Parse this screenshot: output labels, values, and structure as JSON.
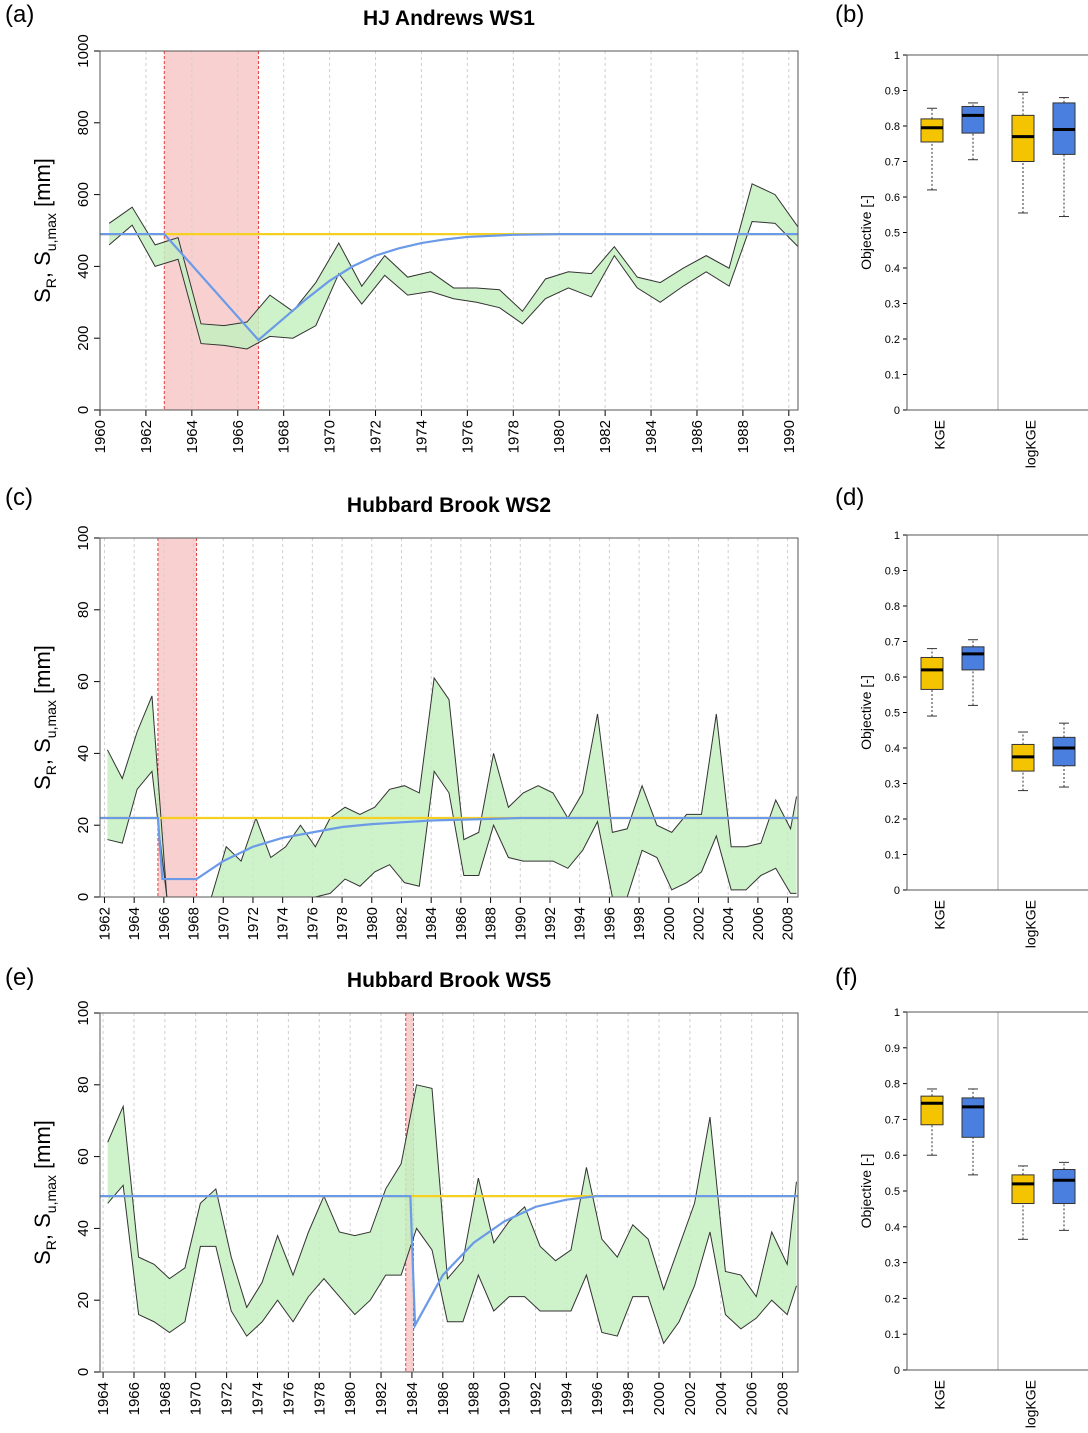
{
  "chart_data": [
    {
      "type": "area",
      "panel": "(a)",
      "title": "HJ Andrews  WS1",
      "ylabel": [
        "S",
        "R",
        ",  S",
        "u,max",
        " [mm]"
      ],
      "xlim": [
        1960,
        1990.4
      ],
      "xticks": [
        1960,
        1962,
        1964,
        1966,
        1968,
        1970,
        1972,
        1974,
        1976,
        1978,
        1980,
        1982,
        1984,
        1986,
        1988,
        1990
      ],
      "ylim": [
        0,
        1000
      ],
      "yticks": [
        0,
        200,
        400,
        600,
        800,
        1000
      ],
      "grid": true,
      "highlight": {
        "x": [
          1962.8,
          1966.9
        ],
        "color": "#f9d0d0"
      },
      "band": {
        "color": "#c6f0bf",
        "x": [
          1960.4,
          1961.4,
          1962.4,
          1963.4,
          1964.4,
          1965.4,
          1966.4,
          1967.4,
          1968.4,
          1969.4,
          1970.4,
          1971.4,
          1972.4,
          1973.4,
          1974.4,
          1975.4,
          1976.4,
          1977.4,
          1978.4,
          1979.4,
          1980.4,
          1981.4,
          1982.4,
          1983.4,
          1984.4,
          1985.4,
          1986.4,
          1987.4,
          1988.4,
          1989.4,
          1990.4
        ],
        "upper": [
          520,
          565,
          460,
          480,
          240,
          235,
          245,
          320,
          275,
          355,
          465,
          345,
          430,
          370,
          385,
          340,
          340,
          335,
          275,
          365,
          385,
          380,
          455,
          370,
          355,
          395,
          430,
          395,
          630,
          600,
          510
        ],
        "lower": [
          460,
          515,
          400,
          420,
          185,
          180,
          170,
          205,
          200,
          235,
          380,
          295,
          375,
          320,
          330,
          310,
          300,
          285,
          240,
          310,
          340,
          315,
          430,
          340,
          300,
          345,
          385,
          345,
          525,
          520,
          455
        ]
      },
      "lines": [
        {
          "color": "#f5d020",
          "x": [
            1960,
            1990.4
          ],
          "values": [
            490,
            490
          ]
        },
        {
          "color": "#6a9ae8",
          "x": [
            1960,
            1962.8,
            1966.9,
            1968,
            1969,
            1970,
            1971,
            1972,
            1973,
            1974,
            1975,
            1976,
            1978,
            1980,
            1990.4
          ],
          "values": [
            490,
            490,
            195,
            255,
            310,
            360,
            400,
            430,
            450,
            465,
            475,
            482,
            488,
            490,
            490
          ]
        }
      ]
    },
    {
      "type": "box",
      "panel": "(b)",
      "ylabel": "Objective [-]",
      "categories": [
        "KGE",
        "logKGE"
      ],
      "ylim": [
        0,
        1
      ],
      "yticks": [
        0,
        0.1,
        0.2,
        0.3,
        0.4,
        0.5,
        0.6,
        0.7,
        0.8,
        0.9,
        1
      ],
      "series": [
        {
          "color": "#f5c400",
          "values": [
            [
              0.62,
              0.755,
              0.795,
              0.82,
              0.85
            ],
            [
              0.555,
              0.7,
              0.77,
              0.83,
              0.895
            ]
          ]
        },
        {
          "color": "#4a7fe0",
          "values": [
            [
              0.705,
              0.78,
              0.83,
              0.855,
              0.865
            ],
            [
              0.545,
              0.72,
              0.79,
              0.865,
              0.88
            ]
          ]
        }
      ]
    },
    {
      "type": "area",
      "panel": "(c)",
      "title": "Hubbard Brook WS2",
      "ylabel": [
        "S",
        "R",
        ",  S",
        "u,max",
        " [mm]"
      ],
      "xlim": [
        1961.7,
        2008.7
      ],
      "xticks": [
        1962,
        1964,
        1966,
        1968,
        1970,
        1972,
        1974,
        1976,
        1978,
        1980,
        1982,
        1984,
        1986,
        1988,
        1990,
        1992,
        1994,
        1996,
        1998,
        2000,
        2002,
        2004,
        2006,
        2008
      ],
      "ylim": [
        0,
        100
      ],
      "yticks": [
        0,
        20,
        40,
        60,
        80,
        100
      ],
      "grid": true,
      "highlight": {
        "x": [
          1965.6,
          1968.2
        ],
        "color": "#f9d0d0"
      },
      "band": {
        "color": "#c6f0bf",
        "x": [
          1962.2,
          1963.2,
          1964.2,
          1965.2,
          1966.2,
          1967.2,
          1968.2,
          1969.2,
          1970.2,
          1971.2,
          1972.2,
          1973.2,
          1974.2,
          1975.2,
          1976.2,
          1977.2,
          1978.2,
          1979.2,
          1980.2,
          1981.2,
          1982.2,
          1983.2,
          1984.2,
          1985.2,
          1986.2,
          1987.2,
          1988.2,
          1989.2,
          1990.2,
          1991.2,
          1992.2,
          1993.2,
          1994.2,
          1995.2,
          1996.2,
          1997.2,
          1998.2,
          1999.2,
          2000.2,
          2001.2,
          2002.2,
          2003.2,
          2004.2,
          2005.2,
          2006.2,
          2007.2,
          2008.2,
          2008.6
        ],
        "upper": [
          41,
          33,
          46,
          56,
          0,
          0,
          0,
          0,
          14,
          10,
          22,
          11,
          14,
          20,
          14,
          22,
          25,
          23,
          25,
          30,
          31,
          29,
          61,
          55,
          16,
          18,
          40,
          25,
          29,
          31,
          29,
          22,
          29,
          51,
          18,
          19,
          31,
          20,
          18,
          23,
          23,
          51,
          14,
          14,
          15,
          27,
          19,
          28
        ],
        "lower": [
          16,
          15,
          30,
          35,
          0,
          0,
          0,
          0,
          0,
          0,
          0,
          0,
          0,
          0,
          0,
          1,
          5,
          3,
          7,
          9,
          4,
          3,
          35,
          29,
          6,
          6,
          20,
          11,
          10,
          10,
          10,
          8,
          13,
          21,
          0,
          0,
          13,
          11,
          2,
          4,
          7,
          17,
          2,
          2,
          6,
          8,
          1,
          1
        ]
      },
      "lines": [
        {
          "color": "#f5d020",
          "x": [
            1961.7,
            2008.7
          ],
          "values": [
            22,
            22
          ]
        },
        {
          "color": "#6a9ae8",
          "x": [
            1961.7,
            1965.6,
            1965.9,
            1968.2,
            1970,
            1972,
            1974,
            1976,
            1978,
            1980,
            1984,
            1990,
            2008.7
          ],
          "values": [
            22,
            22,
            5,
            5,
            10,
            14,
            16.5,
            18,
            19.5,
            20.3,
            21.3,
            22,
            22
          ]
        }
      ]
    },
    {
      "type": "box",
      "panel": "(d)",
      "ylabel": "Objective [-]",
      "categories": [
        "KGE",
        "logKGE"
      ],
      "ylim": [
        0,
        1
      ],
      "yticks": [
        0,
        0.1,
        0.2,
        0.3,
        0.4,
        0.5,
        0.6,
        0.7,
        0.8,
        0.9,
        1
      ],
      "series": [
        {
          "color": "#f5c400",
          "values": [
            [
              0.49,
              0.565,
              0.62,
              0.655,
              0.68
            ],
            [
              0.28,
              0.335,
              0.375,
              0.41,
              0.445
            ]
          ]
        },
        {
          "color": "#4a7fe0",
          "values": [
            [
              0.52,
              0.62,
              0.665,
              0.685,
              0.705
            ],
            [
              0.29,
              0.35,
              0.4,
              0.43,
              0.47
            ]
          ]
        }
      ]
    },
    {
      "type": "area",
      "panel": "(e)",
      "title": "Hubbard Brook WS5",
      "ylabel": [
        "S",
        "R",
        ",  S",
        "u,max",
        " [mm]"
      ],
      "xlim": [
        1963.8,
        2009
      ],
      "xticks": [
        1964,
        1966,
        1968,
        1970,
        1972,
        1974,
        1976,
        1978,
        1980,
        1982,
        1984,
        1986,
        1988,
        1990,
        1992,
        1994,
        1996,
        1998,
        2000,
        2002,
        2004,
        2006,
        2008
      ],
      "ylim": [
        0,
        100
      ],
      "yticks": [
        0,
        20,
        40,
        60,
        80,
        100
      ],
      "grid": true,
      "highlight": {
        "x": [
          1983.6,
          1984.1
        ],
        "color": "#f9d0d0"
      },
      "band": {
        "color": "#c6f0bf",
        "x": [
          1964.3,
          1965.3,
          1966.3,
          1967.3,
          1968.3,
          1969.3,
          1970.3,
          1971.3,
          1972.3,
          1973.3,
          1974.3,
          1975.3,
          1976.3,
          1977.3,
          1978.3,
          1979.3,
          1980.3,
          1981.3,
          1982.3,
          1983.3,
          1984.3,
          1985.3,
          1986.3,
          1987.3,
          1988.3,
          1989.3,
          1990.3,
          1991.3,
          1992.3,
          1993.3,
          1994.3,
          1995.3,
          1996.3,
          1997.3,
          1998.3,
          1999.3,
          2000.3,
          2001.3,
          2002.3,
          2003.3,
          2004.3,
          2005.3,
          2006.3,
          2007.3,
          2008.3,
          2008.9
        ],
        "upper": [
          64,
          74,
          32,
          30,
          26,
          29,
          47,
          51,
          32,
          18,
          25,
          38,
          27,
          39,
          49,
          39,
          38,
          39,
          51,
          58,
          80,
          79,
          26,
          31,
          54,
          36,
          42,
          46,
          35,
          31,
          34,
          57,
          37,
          32,
          41,
          37,
          23,
          35,
          47,
          71,
          28,
          27,
          21,
          39,
          30,
          53
        ],
        "lower": [
          47,
          52,
          16,
          14,
          11,
          14,
          35,
          35,
          17,
          10,
          14,
          20,
          14,
          21,
          26,
          21,
          16,
          20,
          27,
          27,
          40,
          34,
          14,
          14,
          27,
          17,
          21,
          21,
          17,
          17,
          17,
          27,
          11,
          10,
          21,
          21,
          8,
          14,
          24,
          39,
          16,
          12,
          15,
          20,
          16,
          24
        ]
      },
      "lines": [
        {
          "color": "#f5d020",
          "x": [
            1963.8,
            2009
          ],
          "values": [
            49,
            49
          ]
        },
        {
          "color": "#6a9ae8",
          "x": [
            1963.8,
            1983.9,
            1984.2,
            1986,
            1988,
            1990,
            1992,
            1994,
            1996,
            2009
          ],
          "values": [
            49,
            49,
            13,
            27,
            36,
            42,
            46,
            48,
            49,
            49
          ]
        }
      ]
    },
    {
      "type": "box",
      "panel": "(f)",
      "ylabel": "Objective [-]",
      "categories": [
        "KGE",
        "logKGE"
      ],
      "ylim": [
        0,
        1
      ],
      "yticks": [
        0,
        0.1,
        0.2,
        0.3,
        0.4,
        0.5,
        0.6,
        0.7,
        0.8,
        0.9,
        1
      ],
      "series": [
        {
          "color": "#f5c400",
          "values": [
            [
              0.6,
              0.685,
              0.745,
              0.765,
              0.785
            ],
            [
              0.365,
              0.465,
              0.52,
              0.545,
              0.57
            ]
          ]
        },
        {
          "color": "#4a7fe0",
          "values": [
            [
              0.545,
              0.65,
              0.735,
              0.76,
              0.785
            ],
            [
              0.39,
              0.465,
              0.53,
              0.56,
              0.58
            ]
          ]
        }
      ]
    }
  ]
}
